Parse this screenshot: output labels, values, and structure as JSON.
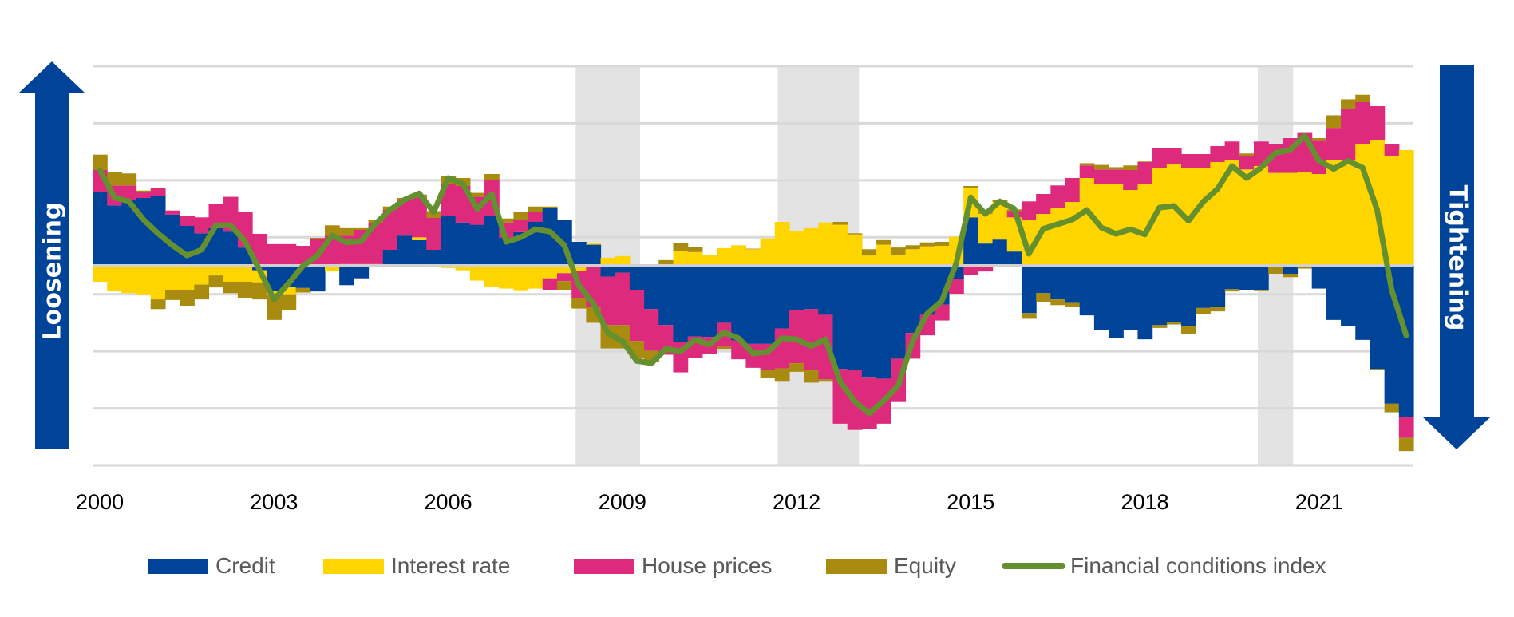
{
  "chart_data": {
    "type": "bar",
    "subtype": "stacked-bar-with-line",
    "title": "",
    "xlabel": "",
    "ylabel": "",
    "frequency": "quarterly",
    "start_period": "2000Q1",
    "end_period": "2022Q3",
    "x_tick_labels": [
      "2000",
      "2003",
      "2006",
      "2009",
      "2012",
      "2015",
      "2018",
      "2021"
    ],
    "x_tick_years": [
      2000,
      2003,
      2006,
      2009,
      2012,
      2015,
      2018,
      2021
    ],
    "ylim": [
      -3.5,
      3.5
    ],
    "y_gridlines": [
      3.5,
      2.5,
      1.5,
      0.5,
      -0.5,
      -1.5,
      -2.5,
      -3.5
    ],
    "y_tick_labels_shown": false,
    "grid": true,
    "legend_position": "bottom",
    "direction_labels": {
      "up": "Loosening",
      "down": "Tightening"
    },
    "recession_bands": [
      {
        "start": 2008.32,
        "end": 2009.43
      },
      {
        "start": 2011.8,
        "end": 2013.2
      },
      {
        "start": 2020.07,
        "end": 2020.68
      }
    ],
    "colors": {
      "credit": "#00449a",
      "interest": "#ffd500",
      "house": "#dd2a7d",
      "equity": "#a98b10",
      "fci": "#65902f",
      "grid": "#d9d9d9",
      "zero": "#d0d0d0",
      "band": "#e3e3e3",
      "arrow": "#00449a"
    },
    "series": [
      {
        "key": "credit",
        "name": "Credit",
        "kind": "bar",
        "values": [
          1.29,
          1.06,
          1.16,
          1.19,
          1.22,
          0.9,
          0.7,
          0.57,
          0.66,
          0.6,
          0.32,
          -0.08,
          -0.45,
          -0.38,
          -0.39,
          -0.45,
          0,
          -0.34,
          -0.22,
          0,
          0.28,
          0.53,
          0.45,
          0.28,
          0.87,
          0.76,
          0.72,
          0.88,
          0.49,
          0.59,
          0.77,
          1.02,
          0.8,
          0.42,
          0.37,
          -0.19,
          -0.12,
          -0.42,
          -0.76,
          -1.04,
          -1.33,
          -1.24,
          -1.25,
          -1.0,
          -1.31,
          -1.37,
          -1.37,
          -1.1,
          -0.77,
          -0.76,
          -0.86,
          -1.81,
          -1.83,
          -1.95,
          -1.98,
          -1.63,
          -1.18,
          -0.86,
          -0.68,
          -0.23,
          0.85,
          0.39,
          0.46,
          0.25,
          -0.83,
          -0.48,
          -0.59,
          -0.64,
          -0.87,
          -1.12,
          -1.26,
          -1.12,
          -1.29,
          -1.04,
          -0.98,
          -1.05,
          -0.74,
          -0.72,
          -0.41,
          -0.42,
          -0.42,
          0,
          -0.14,
          0.02,
          -0.4,
          -0.95,
          -1.06,
          -1.3,
          -1.81,
          -2.42,
          -2.65
        ]
      },
      {
        "key": "interest",
        "name": "Interest rate",
        "kind": "bar",
        "values": [
          -0.28,
          -0.45,
          -0.48,
          -0.5,
          -0.59,
          -0.42,
          -0.42,
          -0.33,
          -0.17,
          -0.28,
          -0.28,
          -0.21,
          -0.05,
          -0.12,
          0,
          0,
          -0.1,
          0.03,
          0.03,
          0.03,
          0,
          -0.02,
          0.05,
          0,
          -0.04,
          -0.08,
          -0.26,
          -0.37,
          -0.4,
          -0.43,
          -0.4,
          -0.22,
          -0.13,
          -0.09,
          0.02,
          0.14,
          0.17,
          0,
          0,
          0,
          0.26,
          0.24,
          0.19,
          0.31,
          0.36,
          0.29,
          0.48,
          0.77,
          0.61,
          0.66,
          0.76,
          0.72,
          0.55,
          0.18,
          0.37,
          0.19,
          0.29,
          0.34,
          0.35,
          0.51,
          0.52,
          0.52,
          0.66,
          0.6,
          0.8,
          0.91,
          1.02,
          1.12,
          1.54,
          1.44,
          1.44,
          1.33,
          1.44,
          1.72,
          1.79,
          1.72,
          1.72,
          1.82,
          1.86,
          1.69,
          1.75,
          1.63,
          1.63,
          1.63,
          1.61,
          1.86,
          1.86,
          2.13,
          2.21,
          1.93,
          2.03
        ]
      },
      {
        "key": "house",
        "name": "House prices",
        "kind": "bar",
        "values": [
          0.39,
          0.35,
          0.25,
          0.1,
          0.15,
          0.07,
          0.18,
          0.28,
          0.42,
          0.61,
          0.63,
          0.56,
          0.38,
          0.38,
          0.35,
          0.47,
          0.53,
          0.5,
          0.6,
          0.72,
          0.7,
          0.64,
          0.7,
          0.56,
          0.57,
          0.64,
          0.49,
          0.63,
          0.27,
          0.22,
          0.17,
          -0.2,
          -0.14,
          -0.47,
          -0.72,
          -0.85,
          -0.92,
          -0.9,
          -0.73,
          -0.52,
          -0.54,
          -0.38,
          -0.3,
          -0.42,
          -0.33,
          -0.42,
          -0.45,
          -0.7,
          -0.94,
          -1.07,
          -1.13,
          -0.96,
          -1.05,
          -0.91,
          -0.79,
          -0.76,
          -0.45,
          -0.36,
          -0.28,
          -0.26,
          -0.16,
          -0.1,
          0,
          0.11,
          0.33,
          0.35,
          0.39,
          0.42,
          0.22,
          0.25,
          0.25,
          0.35,
          0.38,
          0.35,
          0.28,
          0.24,
          0.24,
          0.28,
          0.32,
          0.24,
          0.43,
          0.5,
          0.61,
          0.68,
          0.58,
          0.56,
          0.89,
          0.74,
          0.59,
          0.21,
          -0.37
        ]
      },
      {
        "key": "equity",
        "name": "Equity",
        "kind": "bar",
        "values": [
          0.27,
          0.23,
          0.21,
          0.03,
          -0.17,
          -0.18,
          -0.28,
          -0.26,
          -0.21,
          -0.2,
          -0.28,
          -0.3,
          -0.45,
          -0.28,
          -0.08,
          0.02,
          0.18,
          0.13,
          0.03,
          0.05,
          0.06,
          0.02,
          0.05,
          0.12,
          0.14,
          0.14,
          0.07,
          0.1,
          0.07,
          0.13,
          0.1,
          0.02,
          -0.15,
          -0.19,
          -0.28,
          -0.41,
          -0.41,
          -0.31,
          -0.19,
          0.1,
          0.14,
          0.09,
          0,
          -0.04,
          0,
          0.01,
          -0.14,
          -0.22,
          -0.15,
          -0.22,
          -0.03,
          0.05,
          0.02,
          0.11,
          0.08,
          0.13,
          0.07,
          0.07,
          0.07,
          0,
          0.03,
          0.05,
          0.03,
          0.03,
          -0.1,
          -0.15,
          -0.1,
          -0.08,
          0.04,
          0.08,
          0.04,
          0.08,
          0.01,
          -0.05,
          -0.05,
          -0.14,
          -0.1,
          -0.08,
          -0.04,
          0.04,
          -0.01,
          -0.14,
          -0.06,
          -0.05,
          0.05,
          0.22,
          0.17,
          0.13,
          -0.01,
          -0.15,
          -0.23
        ]
      },
      {
        "key": "fci",
        "name": "Financial conditions index",
        "kind": "line",
        "values": [
          1.68,
          1.2,
          1.13,
          0.81,
          0.57,
          0.36,
          0.18,
          0.28,
          0.71,
          0.71,
          0.43,
          -0.07,
          -0.59,
          -0.31,
          0.0,
          0.18,
          0.53,
          0.41,
          0.43,
          0.74,
          0.98,
          1.16,
          1.27,
          0.94,
          1.54,
          1.44,
          1.0,
          1.26,
          0.42,
          0.5,
          0.64,
          0.6,
          0.36,
          -0.34,
          -0.66,
          -1.18,
          -1.32,
          -1.67,
          -1.71,
          -1.46,
          -1.5,
          -1.3,
          -1.38,
          -1.17,
          -1.27,
          -1.54,
          -1.51,
          -1.27,
          -1.29,
          -1.41,
          -1.29,
          -2.03,
          -2.38,
          -2.59,
          -2.37,
          -2.1,
          -1.32,
          -0.84,
          -0.62,
          0.04,
          1.2,
          0.91,
          1.13,
          1.0,
          0.21,
          0.65,
          0.73,
          0.81,
          0.98,
          0.67,
          0.56,
          0.64,
          0.55,
          1.02,
          1.05,
          0.79,
          1.12,
          1.35,
          1.75,
          1.54,
          1.72,
          1.98,
          2.03,
          2.28,
          1.84,
          1.7,
          1.84,
          1.72,
          0.98,
          -0.42,
          -1.22
        ]
      }
    ]
  },
  "legend": {
    "items": [
      {
        "label": "Credit",
        "color": "#00449a",
        "kind": "swatch"
      },
      {
        "label": "Interest rate",
        "color": "#ffd500",
        "kind": "swatch"
      },
      {
        "label": "House prices",
        "color": "#dd2a7d",
        "kind": "swatch"
      },
      {
        "label": "Equity",
        "color": "#a98b10",
        "kind": "swatch"
      },
      {
        "label": "Financial conditions index",
        "color": "#65902f",
        "kind": "line"
      }
    ]
  }
}
